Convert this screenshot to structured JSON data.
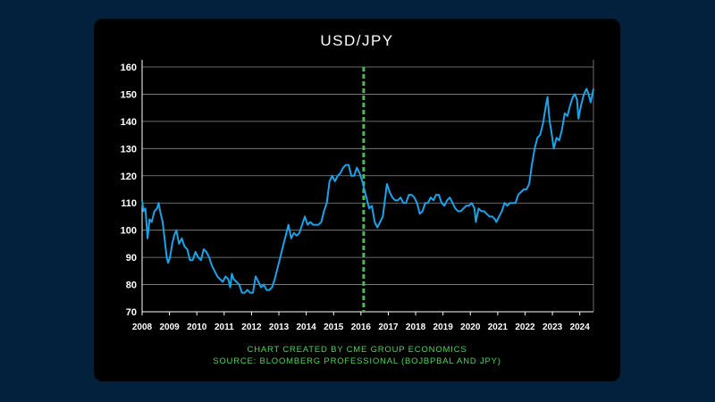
{
  "colors": {
    "background": "#03203d",
    "panel": "#000000",
    "line": "#1aa3e8",
    "marker": "#3ec44a",
    "grid": "#8a8a8a",
    "text": "#ffffff",
    "credit": "#4dd45a"
  },
  "chart_data": {
    "type": "line",
    "title": "USD/JPY",
    "xlabel": "",
    "ylabel": "",
    "xlim": [
      2008.0,
      2024.5
    ],
    "ylim": [
      70,
      160
    ],
    "y_ticks": [
      70,
      80,
      90,
      100,
      110,
      120,
      130,
      140,
      150,
      160
    ],
    "x_tick_labels": [
      "2008",
      "2009",
      "2010",
      "2011",
      "2012",
      "2013",
      "2014",
      "2015",
      "2016",
      "2017",
      "2018",
      "2019",
      "2020",
      "2021",
      "2022",
      "2023",
      "2024"
    ],
    "grid": "horizontal",
    "vertical_marker": {
      "x": 2016.1,
      "style": "dashed"
    },
    "series": [
      {
        "name": "",
        "points": [
          [
            2008.0,
            111
          ],
          [
            2008.05,
            107
          ],
          [
            2008.12,
            108
          ],
          [
            2008.2,
            97
          ],
          [
            2008.27,
            104
          ],
          [
            2008.35,
            103
          ],
          [
            2008.45,
            107
          ],
          [
            2008.55,
            108
          ],
          [
            2008.6,
            110
          ],
          [
            2008.68,
            106
          ],
          [
            2008.75,
            103
          ],
          [
            2008.82,
            97
          ],
          [
            2008.9,
            90
          ],
          [
            2008.95,
            88
          ],
          [
            2009.02,
            90
          ],
          [
            2009.1,
            95
          ],
          [
            2009.17,
            98
          ],
          [
            2009.25,
            100
          ],
          [
            2009.35,
            95
          ],
          [
            2009.45,
            97
          ],
          [
            2009.55,
            94
          ],
          [
            2009.65,
            93
          ],
          [
            2009.75,
            89
          ],
          [
            2009.85,
            89
          ],
          [
            2009.95,
            92
          ],
          [
            2010.05,
            90
          ],
          [
            2010.15,
            89
          ],
          [
            2010.25,
            93
          ],
          [
            2010.35,
            92
          ],
          [
            2010.45,
            90
          ],
          [
            2010.55,
            87
          ],
          [
            2010.65,
            85
          ],
          [
            2010.75,
            83
          ],
          [
            2010.85,
            82
          ],
          [
            2010.95,
            81
          ],
          [
            2011.05,
            83
          ],
          [
            2011.15,
            82
          ],
          [
            2011.22,
            79
          ],
          [
            2011.28,
            84
          ],
          [
            2011.35,
            82
          ],
          [
            2011.45,
            81
          ],
          [
            2011.55,
            80
          ],
          [
            2011.65,
            77
          ],
          [
            2011.75,
            77
          ],
          [
            2011.85,
            78
          ],
          [
            2011.95,
            77
          ],
          [
            2012.05,
            77
          ],
          [
            2012.15,
            83
          ],
          [
            2012.25,
            81
          ],
          [
            2012.35,
            79
          ],
          [
            2012.45,
            80
          ],
          [
            2012.55,
            78
          ],
          [
            2012.65,
            78
          ],
          [
            2012.75,
            79
          ],
          [
            2012.85,
            82
          ],
          [
            2012.95,
            86
          ],
          [
            2013.05,
            90
          ],
          [
            2013.15,
            94
          ],
          [
            2013.25,
            98
          ],
          [
            2013.35,
            102
          ],
          [
            2013.45,
            97
          ],
          [
            2013.55,
            99
          ],
          [
            2013.65,
            98
          ],
          [
            2013.75,
            99
          ],
          [
            2013.85,
            102
          ],
          [
            2013.95,
            105
          ],
          [
            2014.05,
            102
          ],
          [
            2014.15,
            103
          ],
          [
            2014.25,
            102
          ],
          [
            2014.35,
            102
          ],
          [
            2014.45,
            102
          ],
          [
            2014.55,
            103
          ],
          [
            2014.65,
            107
          ],
          [
            2014.75,
            110
          ],
          [
            2014.85,
            118
          ],
          [
            2014.95,
            120
          ],
          [
            2015.05,
            118
          ],
          [
            2015.15,
            120
          ],
          [
            2015.25,
            121
          ],
          [
            2015.35,
            123
          ],
          [
            2015.45,
            124
          ],
          [
            2015.55,
            124
          ],
          [
            2015.65,
            120
          ],
          [
            2015.75,
            120
          ],
          [
            2015.85,
            123
          ],
          [
            2015.95,
            121
          ],
          [
            2016.05,
            118
          ],
          [
            2016.1,
            116
          ],
          [
            2016.2,
            112
          ],
          [
            2016.3,
            108
          ],
          [
            2016.4,
            109
          ],
          [
            2016.5,
            103
          ],
          [
            2016.6,
            101
          ],
          [
            2016.7,
            103
          ],
          [
            2016.8,
            105
          ],
          [
            2016.9,
            113
          ],
          [
            2016.95,
            117
          ],
          [
            2017.05,
            114
          ],
          [
            2017.15,
            112
          ],
          [
            2017.25,
            111
          ],
          [
            2017.35,
            111
          ],
          [
            2017.45,
            112
          ],
          [
            2017.55,
            110
          ],
          [
            2017.65,
            110
          ],
          [
            2017.75,
            113
          ],
          [
            2017.85,
            113
          ],
          [
            2017.95,
            112
          ],
          [
            2018.05,
            110
          ],
          [
            2018.15,
            106
          ],
          [
            2018.25,
            107
          ],
          [
            2018.35,
            110
          ],
          [
            2018.45,
            110
          ],
          [
            2018.55,
            112
          ],
          [
            2018.65,
            111
          ],
          [
            2018.75,
            113
          ],
          [
            2018.85,
            113
          ],
          [
            2018.95,
            110
          ],
          [
            2019.05,
            109
          ],
          [
            2019.15,
            111
          ],
          [
            2019.25,
            112
          ],
          [
            2019.35,
            110
          ],
          [
            2019.45,
            108
          ],
          [
            2019.55,
            107
          ],
          [
            2019.65,
            107
          ],
          [
            2019.75,
            108
          ],
          [
            2019.85,
            109
          ],
          [
            2019.95,
            109
          ],
          [
            2020.05,
            110
          ],
          [
            2020.15,
            108
          ],
          [
            2020.2,
            103
          ],
          [
            2020.3,
            108
          ],
          [
            2020.4,
            107
          ],
          [
            2020.5,
            107
          ],
          [
            2020.6,
            106
          ],
          [
            2020.7,
            105
          ],
          [
            2020.8,
            105
          ],
          [
            2020.9,
            104
          ],
          [
            2020.95,
            103
          ],
          [
            2021.05,
            105
          ],
          [
            2021.15,
            107
          ],
          [
            2021.25,
            110
          ],
          [
            2021.35,
            109
          ],
          [
            2021.45,
            110
          ],
          [
            2021.55,
            110
          ],
          [
            2021.65,
            110
          ],
          [
            2021.75,
            113
          ],
          [
            2021.85,
            114
          ],
          [
            2021.95,
            115
          ],
          [
            2022.05,
            115
          ],
          [
            2022.15,
            117
          ],
          [
            2022.25,
            124
          ],
          [
            2022.35,
            130
          ],
          [
            2022.45,
            134
          ],
          [
            2022.55,
            135
          ],
          [
            2022.65,
            139
          ],
          [
            2022.75,
            145
          ],
          [
            2022.82,
            149
          ],
          [
            2022.9,
            140
          ],
          [
            2022.95,
            137
          ],
          [
            2023.05,
            130
          ],
          [
            2023.15,
            134
          ],
          [
            2023.25,
            133
          ],
          [
            2023.35,
            137
          ],
          [
            2023.45,
            143
          ],
          [
            2023.55,
            142
          ],
          [
            2023.65,
            146
          ],
          [
            2023.75,
            149
          ],
          [
            2023.82,
            150
          ],
          [
            2023.9,
            148
          ],
          [
            2023.95,
            141
          ],
          [
            2024.05,
            146
          ],
          [
            2024.15,
            150
          ],
          [
            2024.25,
            152
          ],
          [
            2024.32,
            150
          ],
          [
            2024.4,
            147
          ],
          [
            2024.5,
            152
          ]
        ]
      }
    ]
  },
  "credits": {
    "line1": "CHART CREATED BY CME GROUP ECONOMICS",
    "line2": "SOURCE: BLOOMBERG PROFESSIONAL (BOJBPBAL AND JPY)"
  }
}
